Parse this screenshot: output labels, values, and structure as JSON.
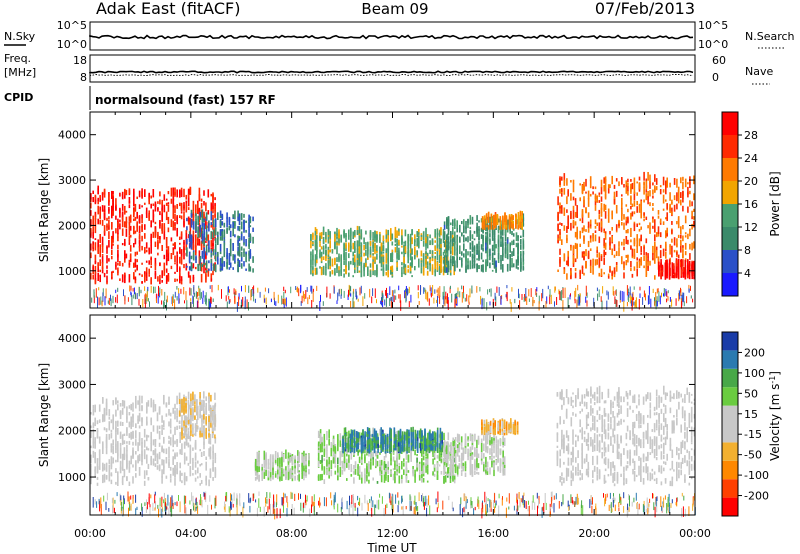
{
  "header": {
    "title_left": "Adak East (fitACF)",
    "title_center": "Beam 09",
    "title_right": "07/Feb/2013"
  },
  "aux": {
    "nsky_label": "N.Sky",
    "nsky_tick_top": "10^5",
    "nsky_tick_bottom": "10^0",
    "nsearch_label": "N.Search",
    "freq_label_1": "Freq.",
    "freq_label_2": "[MHz]",
    "freq_tick_top": "18",
    "freq_tick_bottom": "8",
    "nave_label": "Nave",
    "nave_tick_top": "60",
    "nave_tick_bottom": "0",
    "cpid_label": "CPID",
    "cpid_text": "normalsound (fast) 157 RF"
  },
  "colors": {
    "power_scale": [
      "#1a1aff",
      "#2a50c8",
      "#3a8a6a",
      "#4aa070",
      "#f2a500",
      "#ff7a00",
      "#ff2a00",
      "#ff0000"
    ],
    "velocity_scale": [
      "#ff0000",
      "#ff4000",
      "#ff8800",
      "#f2b030",
      "#c8c8c8",
      "#c8c8c8",
      "#6acc40",
      "#48a848",
      "#2a7ab0",
      "#1a3ca8"
    ]
  },
  "chart_data": [
    {
      "type": "heatmap",
      "panel": "power",
      "ylabel": "Slant Range [km]",
      "yticks": [
        1000,
        2000,
        3000,
        4000
      ],
      "ylim": [
        180,
        4500
      ],
      "xlim_hours": [
        0,
        24
      ],
      "colorbar_label": "Power [dB]",
      "colorbar_ticks": [
        "4",
        "8",
        "12",
        "16",
        "20",
        "24",
        "28"
      ],
      "colorbar_range": [
        0,
        30
      ],
      "regions": [
        {
          "t0": 0.0,
          "t1": 5.0,
          "r0": 700,
          "r1": 2700,
          "v": 26
        },
        {
          "t0": 3.8,
          "t1": 6.5,
          "r0": 950,
          "r1": 2200,
          "v": 8
        },
        {
          "t0": 8.7,
          "t1": 14.5,
          "r0": 850,
          "r1": 1800,
          "v": 14
        },
        {
          "t0": 14.0,
          "t1": 17.2,
          "r0": 950,
          "r1": 2100,
          "v": 10
        },
        {
          "t0": 15.5,
          "t1": 17.2,
          "r0": 1900,
          "r1": 2150,
          "v": 20
        },
        {
          "t0": 18.5,
          "t1": 24.0,
          "r0": 800,
          "r1": 3000,
          "v": 22
        },
        {
          "t0": 22.5,
          "t1": 24.0,
          "r0": 800,
          "r1": 1100,
          "v": 28
        }
      ]
    },
    {
      "type": "heatmap",
      "panel": "velocity",
      "ylabel": "Slant Range [km]",
      "yticks": [
        1000,
        2000,
        3000,
        4000
      ],
      "ylim": [
        180,
        4500
      ],
      "xlim_hours": [
        0,
        24
      ],
      "xticks": [
        "00:00",
        "04:00",
        "08:00",
        "12:00",
        "16:00",
        "20:00",
        "00:00"
      ],
      "xlabel": "Time UT",
      "colorbar_label": "Velocity [m s^-1]",
      "colorbar_ticks": [
        "-200",
        "-100",
        "-50",
        "-15",
        "15",
        "50",
        "100",
        "200"
      ],
      "colorbar_range": [
        -250,
        250
      ],
      "regions": [
        {
          "t0": 0.0,
          "t1": 5.0,
          "r0": 800,
          "r1": 2600,
          "v": 0
        },
        {
          "t0": 3.5,
          "t1": 5.0,
          "r0": 1800,
          "r1": 2700,
          "v": -40
        },
        {
          "t0": 6.5,
          "t1": 8.7,
          "r0": 900,
          "r1": 1400,
          "v": 40
        },
        {
          "t0": 9.0,
          "t1": 14.5,
          "r0": 850,
          "r1": 1900,
          "v": 60
        },
        {
          "t0": 10.0,
          "t1": 14.0,
          "r0": 1500,
          "r1": 1900,
          "v": 160
        },
        {
          "t0": 14.0,
          "t1": 16.5,
          "r0": 1000,
          "r1": 1800,
          "v": 30
        },
        {
          "t0": 15.5,
          "t1": 17.0,
          "r0": 1900,
          "r1": 2100,
          "v": -70
        },
        {
          "t0": 18.5,
          "t1": 24.0,
          "r0": 800,
          "r1": 2800,
          "v": 0
        }
      ]
    }
  ]
}
